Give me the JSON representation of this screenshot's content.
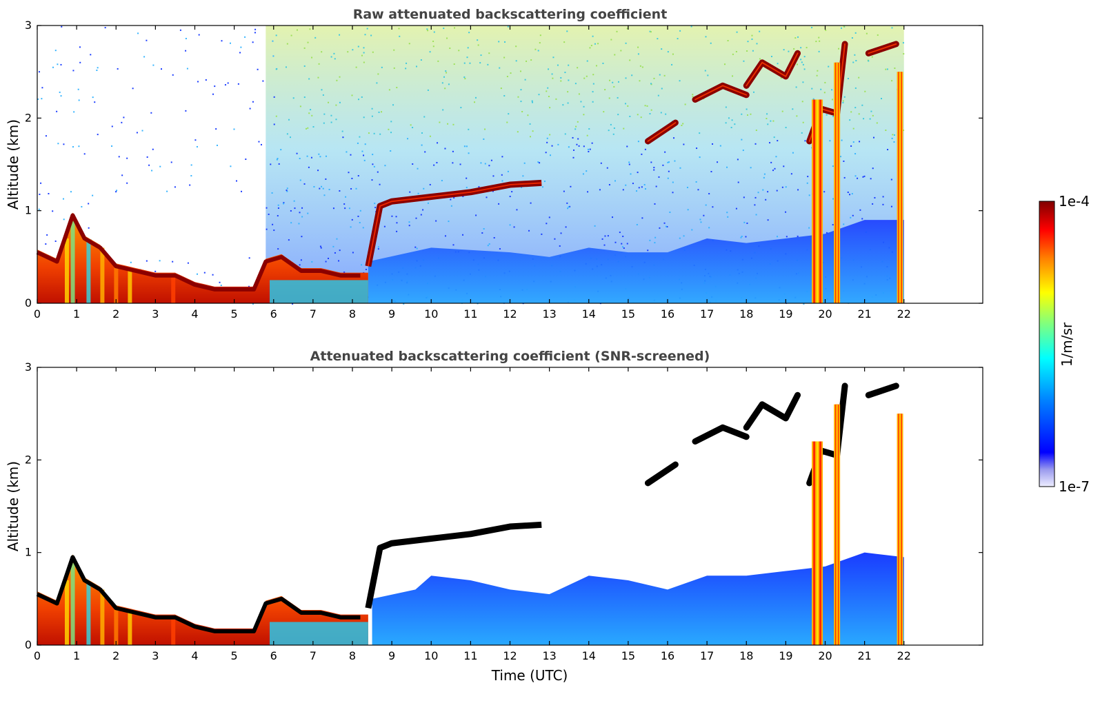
{
  "chart_data": [
    {
      "type": "heatmap",
      "title": "Raw attenuated backscattering coefficient",
      "xlabel": "",
      "ylabel": "Altitude (km)",
      "xlim": [
        0,
        24
      ],
      "ylim": [
        0,
        3
      ],
      "xticks": [
        "0",
        "1",
        "2",
        "3",
        "4",
        "5",
        "6",
        "7",
        "8",
        "9",
        "10",
        "11",
        "12",
        "13",
        "14",
        "15",
        "16",
        "17",
        "18",
        "19",
        "20",
        "21",
        "22"
      ],
      "yticks": [
        "0",
        "1",
        "2",
        "3"
      ],
      "data_end_hour": 22,
      "grid": false,
      "features": {
        "boundary_layer_top_km": [
          [
            0.0,
            0.55
          ],
          [
            0.5,
            0.45
          ],
          [
            0.9,
            0.95
          ],
          [
            1.2,
            0.7
          ],
          [
            1.6,
            0.6
          ],
          [
            2.0,
            0.4
          ],
          [
            2.5,
            0.35
          ],
          [
            3.0,
            0.3
          ],
          [
            3.5,
            0.3
          ],
          [
            4.0,
            0.2
          ],
          [
            4.5,
            0.15
          ],
          [
            5.0,
            0.15
          ],
          [
            5.5,
            0.15
          ],
          [
            5.8,
            0.45
          ],
          [
            6.2,
            0.5
          ],
          [
            6.7,
            0.35
          ],
          [
            7.2,
            0.35
          ],
          [
            7.7,
            0.3
          ],
          [
            8.2,
            0.3
          ]
        ],
        "rising_cloud_layer_km": [
          [
            8.4,
            0.4
          ],
          [
            8.7,
            1.05
          ],
          [
            9.0,
            1.1
          ],
          [
            10.0,
            1.15
          ],
          [
            11.0,
            1.2
          ],
          [
            12.0,
            1.28
          ],
          [
            12.8,
            1.3
          ]
        ],
        "mid_level_cloud_segments_km": [
          [
            [
              15.5,
              1.75
            ],
            [
              16.2,
              1.95
            ]
          ],
          [
            [
              16.7,
              2.2
            ],
            [
              17.4,
              2.35
            ],
            [
              18.0,
              2.25
            ]
          ],
          [
            [
              18.0,
              2.35
            ],
            [
              18.4,
              2.6
            ],
            [
              19.0,
              2.45
            ],
            [
              19.3,
              2.7
            ]
          ],
          [
            [
              19.6,
              1.75
            ],
            [
              19.9,
              2.1
            ],
            [
              20.3,
              2.05
            ],
            [
              20.5,
              2.8
            ]
          ],
          [
            [
              21.1,
              2.7
            ],
            [
              21.8,
              2.8
            ]
          ]
        ],
        "precipitation_columns_hours": [
          19.8,
          20.3,
          21.9
        ]
      }
    },
    {
      "type": "heatmap",
      "title": "Attenuated backscattering coefficient (SNR-screened)",
      "xlabel": "Time (UTC)",
      "ylabel": "Altitude (km)",
      "xlim": [
        0,
        24
      ],
      "ylim": [
        0,
        3
      ],
      "xticks": [
        "0",
        "1",
        "2",
        "3",
        "4",
        "5",
        "6",
        "7",
        "8",
        "9",
        "10",
        "11",
        "12",
        "13",
        "14",
        "15",
        "16",
        "17",
        "18",
        "19",
        "20",
        "21",
        "22"
      ],
      "yticks": [
        "0",
        "1",
        "2",
        "3"
      ],
      "data_end_hour": 22,
      "grid": false,
      "features": {
        "boundary_layer_top_km": [
          [
            0.0,
            0.55
          ],
          [
            0.5,
            0.45
          ],
          [
            0.9,
            0.95
          ],
          [
            1.2,
            0.7
          ],
          [
            1.6,
            0.6
          ],
          [
            2.0,
            0.4
          ],
          [
            2.5,
            0.35
          ],
          [
            3.0,
            0.3
          ],
          [
            3.5,
            0.3
          ],
          [
            4.0,
            0.2
          ],
          [
            4.5,
            0.15
          ],
          [
            5.0,
            0.15
          ],
          [
            5.5,
            0.15
          ],
          [
            5.8,
            0.45
          ],
          [
            6.2,
            0.5
          ],
          [
            6.7,
            0.35
          ],
          [
            7.2,
            0.35
          ],
          [
            7.7,
            0.3
          ],
          [
            8.2,
            0.3
          ]
        ],
        "rising_cloud_layer_km": [
          [
            8.4,
            0.4
          ],
          [
            8.7,
            1.05
          ],
          [
            9.0,
            1.1
          ],
          [
            10.0,
            1.15
          ],
          [
            11.0,
            1.2
          ],
          [
            12.0,
            1.28
          ],
          [
            12.8,
            1.3
          ]
        ],
        "mid_level_cloud_segments_km": [
          [
            [
              15.5,
              1.75
            ],
            [
              16.2,
              1.95
            ]
          ],
          [
            [
              16.7,
              2.2
            ],
            [
              17.4,
              2.35
            ],
            [
              18.0,
              2.25
            ]
          ],
          [
            [
              18.0,
              2.35
            ],
            [
              18.4,
              2.6
            ],
            [
              19.0,
              2.45
            ],
            [
              19.3,
              2.7
            ]
          ],
          [
            [
              19.6,
              1.75
            ],
            [
              19.9,
              2.1
            ],
            [
              20.3,
              2.05
            ],
            [
              20.5,
              2.8
            ]
          ],
          [
            [
              21.1,
              2.7
            ],
            [
              21.8,
              2.8
            ]
          ]
        ],
        "precipitation_columns_hours": [
          19.8,
          20.3,
          21.9
        ]
      }
    }
  ],
  "colorbar": {
    "label": "1/m/sr",
    "max_label": "1e-4",
    "min_label": "1e-7",
    "scale": "log",
    "colormap": "jet"
  }
}
